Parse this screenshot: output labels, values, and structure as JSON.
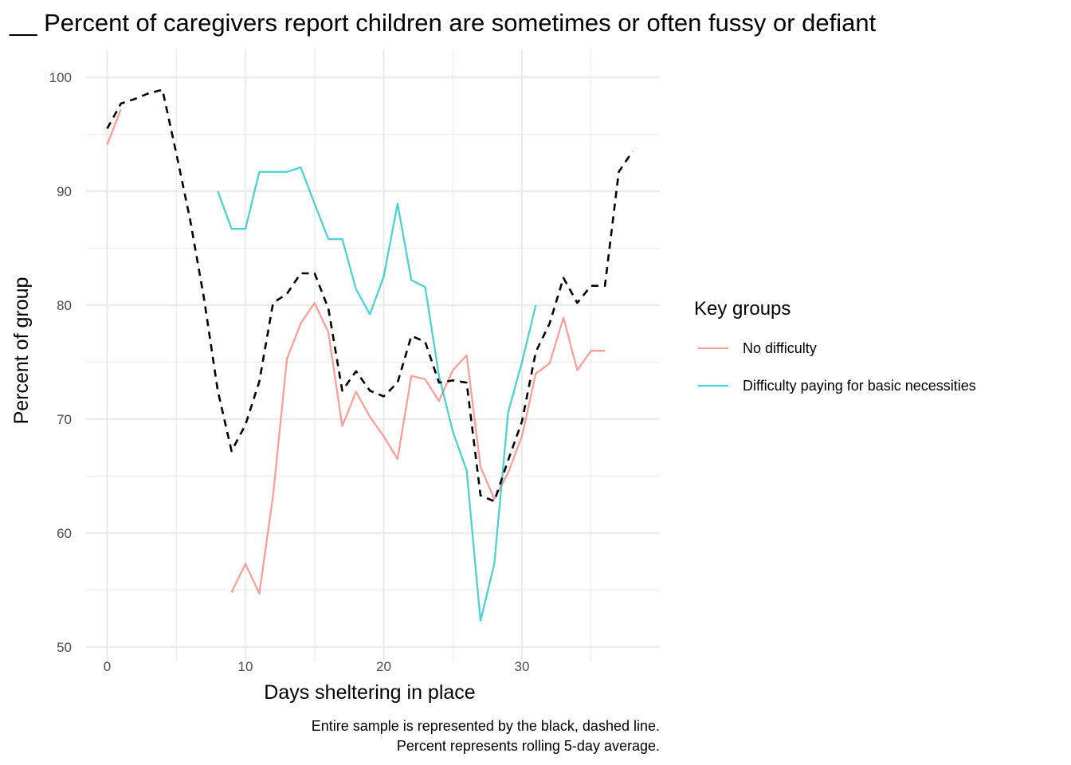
{
  "chart_data": {
    "type": "line",
    "title": "__ Percent of caregivers report children are sometimes or often fussy or defiant",
    "xlabel": "Days sheltering in place",
    "ylabel": "Percent of group",
    "xlim": [
      -1.5,
      39.9
    ],
    "ylim": [
      50,
      102
    ],
    "x_ticks": [
      0,
      10,
      20,
      30
    ],
    "y_ticks": [
      50,
      60,
      70,
      80,
      90,
      100
    ],
    "grid": true,
    "legend": {
      "title": "Key groups",
      "position": "right"
    },
    "series": [
      {
        "name": "No difficulty",
        "color": "#F8766D",
        "dashed": false,
        "segments": [
          [
            [
              0,
              94.1
            ],
            [
              1,
              97.2
            ]
          ],
          [
            [
              9,
              54.8
            ],
            [
              10,
              57.3
            ],
            [
              11,
              54.7
            ],
            [
              12,
              63.3
            ],
            [
              13,
              75.3
            ],
            [
              14,
              78.4
            ],
            [
              15,
              80.2
            ],
            [
              16,
              77.6
            ],
            [
              17,
              69.4
            ],
            [
              18,
              72.4
            ],
            [
              19,
              70.2
            ],
            [
              20,
              68.5
            ],
            [
              21,
              66.5
            ],
            [
              22,
              73.8
            ],
            [
              23,
              73.5
            ],
            [
              24,
              71.6
            ],
            [
              25,
              74.3
            ],
            [
              26,
              75.6
            ],
            [
              27,
              65.8
            ],
            [
              28,
              63.0
            ],
            [
              29,
              65.3
            ],
            [
              30,
              68.5
            ],
            [
              31,
              74.0
            ],
            [
              32,
              74.9
            ],
            [
              33,
              78.9
            ],
            [
              34,
              74.3
            ],
            [
              35,
              76.0
            ],
            [
              36,
              76.0
            ]
          ]
        ]
      },
      {
        "name": "Difficulty paying for basic necessities",
        "color": "#00BFC4",
        "dashed": false,
        "segments": [
          [
            [
              8,
              90.0
            ],
            [
              9,
              86.7
            ],
            [
              10,
              86.7
            ],
            [
              11,
              91.7
            ],
            [
              12,
              91.7
            ],
            [
              13,
              91.7
            ],
            [
              14,
              92.1
            ],
            [
              15,
              88.9
            ],
            [
              16,
              85.8
            ],
            [
              17,
              85.8
            ],
            [
              18,
              81.4
            ],
            [
              19,
              79.2
            ],
            [
              20,
              82.5
            ],
            [
              21,
              88.9
            ],
            [
              22,
              82.2
            ],
            [
              23,
              81.6
            ],
            [
              24,
              73.8
            ],
            [
              25,
              68.9
            ],
            [
              26,
              65.5
            ],
            [
              27,
              52.3
            ],
            [
              28,
              57.3
            ],
            [
              29,
              70.6
            ],
            [
              30,
              75.0
            ],
            [
              31,
              80.0
            ]
          ]
        ]
      },
      {
        "name": "",
        "color": "#000000",
        "dashed": true,
        "segments": [
          [
            [
              0,
              95.5
            ],
            [
              1,
              97.7
            ],
            [
              2,
              98.1
            ],
            [
              3,
              98.6
            ],
            [
              4,
              98.9
            ],
            [
              5,
              93.3
            ],
            [
              6,
              87.5
            ],
            [
              7,
              80.6
            ],
            [
              8,
              72.5
            ],
            [
              9,
              67.2
            ],
            [
              10,
              69.5
            ],
            [
              11,
              73.3
            ],
            [
              12,
              80.2
            ],
            [
              13,
              81.0
            ],
            [
              14,
              82.8
            ],
            [
              15,
              82.8
            ],
            [
              16,
              79.7
            ],
            [
              17,
              72.5
            ],
            [
              18,
              74.2
            ],
            [
              19,
              72.5
            ],
            [
              20,
              72.0
            ],
            [
              21,
              73.2
            ],
            [
              22,
              77.3
            ],
            [
              23,
              76.8
            ],
            [
              24,
              73.2
            ],
            [
              25,
              73.4
            ],
            [
              26,
              73.2
            ],
            [
              27,
              63.3
            ],
            [
              28,
              62.8
            ],
            [
              29,
              66.4
            ],
            [
              30,
              69.8
            ],
            [
              31,
              75.9
            ],
            [
              32,
              78.4
            ],
            [
              33,
              82.4
            ],
            [
              34,
              80.2
            ],
            [
              35,
              81.7
            ],
            [
              36,
              81.7
            ],
            [
              37,
              91.7
            ],
            [
              38,
              93.5
            ]
          ]
        ]
      }
    ],
    "caption": [
      "Entire sample is represented by the black, dashed line.",
      "Percent represents rolling 5-day average."
    ]
  }
}
